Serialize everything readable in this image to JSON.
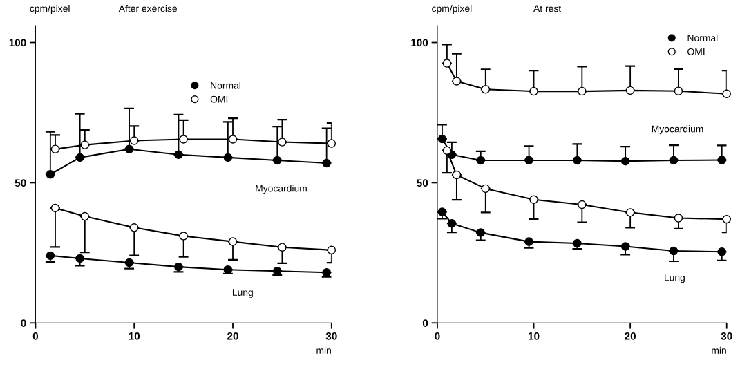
{
  "chart_data": [
    {
      "type": "line",
      "title": "After exercise",
      "ylabel": "cpm/pixel",
      "xlabel": "min",
      "xlim": [
        0,
        30
      ],
      "xticks": [
        0,
        10,
        20,
        30
      ],
      "ylim": [
        0,
        106
      ],
      "yticks": [
        0,
        50,
        100
      ],
      "grid": false,
      "legend": "top",
      "marker": "circle",
      "annotations": [
        "Myocardium",
        "Lung"
      ],
      "series": [
        {
          "name": "Normal",
          "color": "#000000",
          "x": [
            1.5,
            4.5,
            9.5,
            14.5,
            19.5,
            24.5,
            29.5
          ],
          "values": [
            53,
            59,
            62,
            60,
            59,
            58,
            57
          ],
          "errors": [
            [
              53,
              68.2
            ],
            [
              59,
              74.6
            ],
            [
              62,
              76.5
            ],
            [
              60,
              74.3
            ],
            [
              59,
              71.7
            ],
            [
              58,
              70
            ],
            [
              57,
              69.4
            ]
          ]
        },
        {
          "name": "OMI",
          "color": "#ffffff",
          "x": [
            2,
            5,
            10,
            15,
            20,
            25,
            30
          ],
          "values": [
            62,
            63.5,
            65,
            65.5,
            65.5,
            64.5,
            64
          ],
          "errors": [
            [
              62,
              67
            ],
            [
              63.5,
              68.8
            ],
            [
              65,
              70.2
            ],
            [
              65.5,
              72.3
            ],
            [
              65.5,
              73
            ],
            [
              64.5,
              72.5
            ],
            [
              64,
              71.3
            ]
          ]
        },
        {
          "color": "#ffffff",
          "x": [
            2,
            5,
            10,
            15,
            20,
            25,
            30
          ],
          "values": [
            41,
            38,
            34,
            31,
            29,
            27,
            26
          ],
          "errors": [
            [
              27.1,
              41
            ],
            [
              25.2,
              38
            ],
            [
              24.1,
              34
            ],
            [
              23.6,
              31
            ],
            [
              22.5,
              29
            ],
            [
              21.3,
              27
            ],
            [
              21.5,
              26
            ]
          ]
        },
        {
          "color": "#000000",
          "x": [
            1.5,
            4.5,
            9.5,
            14.5,
            19.5,
            24.5,
            29.5
          ],
          "values": [
            24,
            23,
            21.5,
            20,
            19,
            18.5,
            18
          ],
          "errors": [
            [
              21.7,
              24
            ],
            [
              20.4,
              23
            ],
            [
              19.4,
              21.5
            ],
            [
              18.2,
              20
            ],
            [
              17.6,
              19
            ],
            [
              17.1,
              18.5
            ],
            [
              16.4,
              18
            ]
          ]
        }
      ]
    },
    {
      "type": "line",
      "title": "At rest",
      "ylabel": "cpm/pixel",
      "xlabel": "min",
      "xlim": [
        0,
        30
      ],
      "xticks": [
        0,
        10,
        20,
        30
      ],
      "ylim": [
        0,
        106
      ],
      "yticks": [
        0,
        50,
        100
      ],
      "grid": false,
      "legend": "top right",
      "marker": "circle",
      "annotations": [
        "Myocardium",
        "Lung"
      ],
      "series": [
        {
          "name": "Normal",
          "color": "#000000",
          "x": [
            0.5,
            1.5,
            4.5,
            9.5,
            14.5,
            19.5,
            24.5,
            29.5
          ],
          "values": [
            65.6,
            60,
            58,
            58,
            58,
            57.7,
            58,
            58.1
          ],
          "errors": [
            [
              65.6,
              70.7
            ],
            [
              60,
              64.4
            ],
            [
              58,
              61.2
            ],
            [
              58,
              63.1
            ],
            [
              58,
              63.8
            ],
            [
              57.7,
              62.9
            ],
            [
              58,
              63.4
            ],
            [
              58.1,
              63.3
            ]
          ]
        },
        {
          "name": "OMI",
          "color": "#ffffff",
          "x": [
            1,
            2,
            5,
            10,
            15,
            20,
            25,
            30
          ],
          "values": [
            92.6,
            86.2,
            83.3,
            82.6,
            82.6,
            82.9,
            82.7,
            81.7
          ],
          "errors": [
            [
              92.6,
              99.3
            ],
            [
              86.2,
              96
            ],
            [
              83.3,
              90.4
            ],
            [
              82.6,
              90
            ],
            [
              82.6,
              91.4
            ],
            [
              82.9,
              91.6
            ],
            [
              82.7,
              90.5
            ],
            [
              81.7,
              90
            ]
          ]
        },
        {
          "color": "#ffffff",
          "x": [
            1,
            2,
            5,
            10,
            15,
            20,
            25,
            30
          ],
          "values": [
            61.5,
            52.8,
            47.9,
            44,
            42.2,
            39.4,
            37.4,
            37
          ],
          "errors": [
            [
              53.5,
              61.5
            ],
            [
              43.9,
              52.8
            ],
            [
              39.4,
              47.9
            ],
            [
              37,
              44
            ],
            [
              35.9,
              42.2
            ],
            [
              34,
              39.4
            ],
            [
              33.6,
              37.4
            ],
            [
              32.3,
              37
            ]
          ]
        },
        {
          "color": "#000000",
          "x": [
            0.5,
            1.5,
            4.5,
            9.5,
            14.5,
            19.5,
            24.5,
            29.5
          ],
          "values": [
            39.6,
            35.5,
            32.2,
            29,
            28.4,
            27.3,
            25.7,
            25.4
          ],
          "errors": [
            [
              37.2,
              39.6
            ],
            [
              32.3,
              35.5
            ],
            [
              29.5,
              32.2
            ],
            [
              26.8,
              29
            ],
            [
              26.4,
              28.4
            ],
            [
              24.4,
              27.3
            ],
            [
              22,
              25.7
            ],
            [
              22.3,
              25.4
            ]
          ]
        }
      ]
    }
  ]
}
